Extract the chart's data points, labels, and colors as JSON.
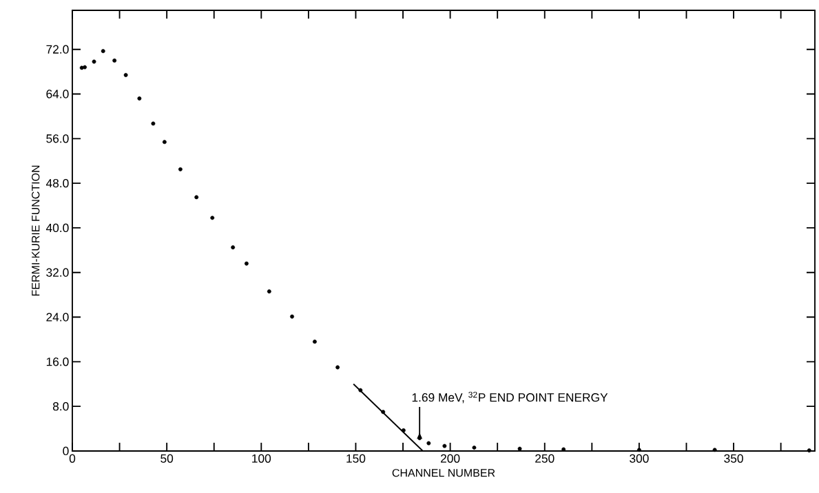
{
  "chart_data": {
    "type": "scatter",
    "xlabel": "CHANNEL NUMBER",
    "ylabel": "FERMI-KURIE FUNCTION",
    "xlim": [
      0,
      393
    ],
    "ylim": [
      0,
      79
    ],
    "xticks": [
      0,
      {
        "value": 25,
        "label": null
      },
      50,
      {
        "value": 75,
        "label": null
      },
      100,
      {
        "value": 125,
        "label": null
      },
      150,
      {
        "value": 175,
        "label": null
      },
      200,
      {
        "value": 225,
        "label": null
      },
      250,
      {
        "value": 275,
        "label": null
      },
      300,
      {
        "value": 325,
        "label": null
      },
      350,
      {
        "value": 375,
        "label": null
      }
    ],
    "yticks": [
      0,
      {
        "value": 8,
        "label": "8.0"
      },
      {
        "value": 16,
        "label": "16.0"
      },
      {
        "value": 24,
        "label": "24.0"
      },
      {
        "value": 32,
        "label": "32.0"
      },
      {
        "value": 40,
        "label": "40.0"
      },
      {
        "value": 48,
        "label": "48.0"
      },
      {
        "value": 56,
        "label": "56.0"
      },
      {
        "value": 64,
        "label": "64.0"
      },
      {
        "value": 72,
        "label": "72.0"
      }
    ],
    "grid": false,
    "series": [
      {
        "color": "#000000",
        "x": [
          5,
          6.6,
          11.5,
          16.3,
          22.3,
          28.3,
          35.5,
          42.8,
          48.8,
          57.2,
          65.7,
          74.1,
          85,
          92.2,
          104.2,
          116.3,
          128.3,
          140.4,
          152.5,
          164.5,
          175.3,
          183.8,
          188.6,
          197,
          212.7,
          236.8,
          260,
          300,
          340,
          390
        ],
        "values": [
          68.7,
          68.8,
          69.8,
          71.7,
          70.0,
          67.4,
          63.2,
          58.7,
          55.4,
          50.5,
          45.5,
          41.8,
          36.5,
          33.6,
          28.6,
          24.1,
          19.6,
          15.0,
          10.9,
          7.0,
          3.7,
          2.3,
          1.4,
          0.9,
          0.6,
          0.4,
          0.3,
          0.2,
          0.2,
          0.1
        ]
      },
      {
        "type": "line",
        "color": "#000000",
        "x": [
          148.8,
          185.5
        ],
        "values": [
          12.0,
          0
        ]
      }
    ],
    "annotations": [
      {
        "text": "1.69 MeV, $^{32}$P END POINT ENERGY",
        "x": 183.8,
        "y": 2.3
      }
    ]
  }
}
